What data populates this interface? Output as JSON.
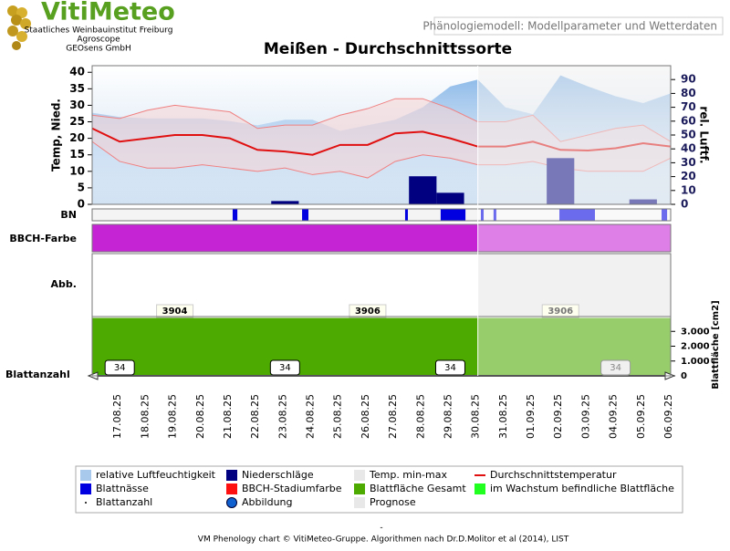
{
  "header": {
    "logo": "VitiMeteo",
    "lines": [
      "Staatliches Weinbauinstitut Freiburg",
      "Agroscope",
      "GEOsens GmbH"
    ],
    "caption": "Phänologiemodell: Modellparameter und Wetterdaten"
  },
  "footer": "VM Phenology chart © VitiMeteo-Gruppe. Algorithmen nach Dr.D.Molitor et al (2014), LIST",
  "footnote_mark": "-",
  "chart_data": {
    "type": "combo",
    "title": "Meißen - Durchschnittssorte",
    "categories": [
      null,
      "17.08.25",
      "18.08.25",
      "19.08.25",
      "20.08.25",
      "21.08.25",
      "22.08.25",
      "23.08.25",
      "24.08.25",
      "25.08.25",
      "26.08.25",
      "27.08.25",
      "28.08.25",
      "29.08.25",
      "30.08.25",
      "31.08.25",
      "01.09.25",
      "02.09.25",
      "03.09.25",
      "04.09.25",
      "05.09.25",
      "06.09.25"
    ],
    "forecast_from": "30.08.25",
    "forecast_name": "Prognose",
    "forecast_color": "#e8e8e8",
    "ylabel": "Temp, Nied.",
    "y2label": "rel. Luftf.",
    "ylim": [
      0,
      42
    ],
    "yticks": [
      0,
      5,
      10,
      15,
      20,
      25,
      30,
      35,
      40
    ],
    "y2lim": [
      0,
      100
    ],
    "y2ticks": [
      0,
      10,
      20,
      30,
      40,
      50,
      60,
      70,
      80,
      90
    ],
    "series": [
      {
        "name": "relative Luftfeuchtigkeit",
        "type": "area",
        "axis": "y2",
        "color": "#a8c8ec",
        "values": [
          66,
          63,
          62,
          62,
          62,
          60,
          57,
          61,
          61,
          53,
          57,
          61,
          70,
          85,
          90,
          70,
          65,
          93,
          85,
          78,
          73,
          80
        ]
      },
      {
        "name": "Temp. min-max",
        "type": "band",
        "color": "#f08080",
        "fill": "#f8d4d4",
        "max": [
          27,
          26,
          28.5,
          30,
          29,
          28,
          23,
          24,
          24,
          27,
          29,
          32,
          32,
          29,
          25,
          25,
          27,
          19,
          21,
          23,
          24,
          19
        ],
        "min": [
          19,
          13,
          11,
          11,
          12,
          11,
          10,
          11,
          9,
          10,
          8,
          13,
          15,
          14,
          12,
          12,
          13,
          11,
          10,
          10,
          10,
          14
        ]
      },
      {
        "name": "Niederschläge",
        "type": "bar",
        "color": "#000080",
        "values": [
          0,
          0,
          0,
          0,
          0,
          0,
          0,
          1,
          0,
          0,
          0,
          0,
          8.5,
          3.5,
          0,
          0,
          0,
          14,
          0,
          0,
          1.5,
          0
        ]
      },
      {
        "name": "Durchschnittstemperatur",
        "type": "line",
        "color": "#e01010",
        "values": [
          23,
          19,
          20,
          21,
          21,
          20,
          16.5,
          16,
          15,
          18,
          18,
          21.5,
          22,
          20,
          17.5,
          17.5,
          19,
          16.5,
          16.3,
          17,
          18.5,
          17.5
        ]
      }
    ],
    "bn": {
      "label": "BN",
      "name": "Blattnässe",
      "color": "#0000e0",
      "intervals": [
        [
          5.1,
          5.27
        ],
        [
          7.62,
          7.85
        ],
        [
          11.36,
          11.46
        ],
        [
          12.65,
          13.55
        ],
        [
          14.11,
          14.21
        ],
        [
          14.57,
          14.67
        ],
        [
          16.96,
          18.25
        ],
        [
          20.67,
          20.87
        ]
      ]
    },
    "bbch": {
      "label": "BBCH-Farbe",
      "name": "BBCH-Stadiumfarbe",
      "color": "#c424d4"
    },
    "abb": {
      "label": "Abb.",
      "name": "Abbildung",
      "color": "#1060d0"
    },
    "leaf": {
      "ylabel": "Blattfläche [cm2]",
      "ylim": [
        0,
        4000
      ],
      "yticks": [
        0,
        {
          "value": 1000,
          "label": "1.000"
        },
        {
          "value": 2000,
          "label": "2.000"
        },
        {
          "value": 3000,
          "label": "3.000"
        }
      ],
      "total": {
        "name": "Blattfläche Gesamt",
        "color": "#4caa00",
        "values": [
          3904,
          3904,
          3904,
          3904,
          3904,
          3904,
          3904,
          3905,
          3905,
          3905,
          3906,
          3906,
          3906,
          3906,
          3906,
          3906,
          3906,
          3906,
          3906,
          3906,
          3906,
          3906
        ]
      },
      "growing": {
        "name": "im Wachstum befindliche Blattfläche",
        "color": "#20ff20",
        "values": [
          80,
          70,
          60,
          55,
          50,
          45,
          40,
          30,
          20,
          10,
          5,
          0,
          0,
          0,
          0,
          0,
          0,
          0,
          0,
          0,
          0,
          0
        ]
      },
      "labels": [
        {
          "at": 3,
          "value": 3904
        },
        {
          "at": 10,
          "value": 3906
        },
        {
          "at": 17,
          "value": 3906
        }
      ]
    },
    "leaf_count": {
      "label": "Blattanzahl",
      "name": "Blattanzahl",
      "labels": [
        {
          "at": 1,
          "value": 34
        },
        {
          "at": 7,
          "value": 34
        },
        {
          "at": 13,
          "value": 34
        },
        {
          "at": 19,
          "value": 34
        }
      ]
    }
  }
}
